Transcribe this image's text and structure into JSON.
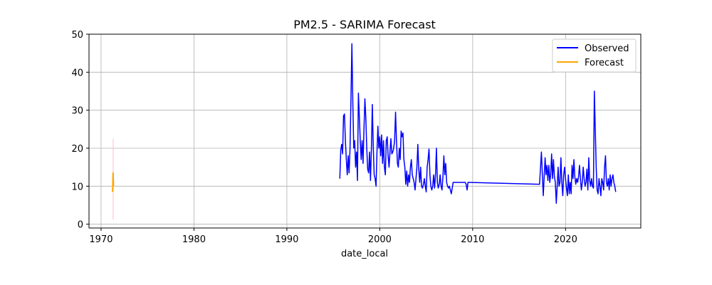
{
  "chart_data": {
    "type": "line",
    "title": "PM2.5 - SARIMA Forecast",
    "xlabel": "date_local",
    "ylabel": "",
    "xlim": [
      1968.7,
      2028.1
    ],
    "ylim": [
      -1,
      50
    ],
    "xticks": [
      1970,
      1980,
      1990,
      2000,
      2010,
      2020
    ],
    "yticks": [
      0,
      10,
      20,
      30,
      40,
      50
    ],
    "grid": true,
    "legend_position": "top-right",
    "series": [
      {
        "name": "Observed",
        "color": "#0000ff",
        "points": [
          [
            1995.7,
            12.0
          ],
          [
            1995.8,
            19.5
          ],
          [
            1995.9,
            21.0
          ],
          [
            1996.0,
            18.5
          ],
          [
            1996.1,
            28.5
          ],
          [
            1996.2,
            29.0
          ],
          [
            1996.3,
            22.0
          ],
          [
            1996.4,
            17.0
          ],
          [
            1996.5,
            13.0
          ],
          [
            1996.6,
            18.0
          ],
          [
            1996.7,
            13.5
          ],
          [
            1996.8,
            20.0
          ],
          [
            1996.9,
            33.0
          ],
          [
            1997.0,
            47.5
          ],
          [
            1997.1,
            32.0
          ],
          [
            1997.2,
            20.0
          ],
          [
            1997.3,
            22.0
          ],
          [
            1997.4,
            15.0
          ],
          [
            1997.5,
            19.0
          ],
          [
            1997.6,
            11.5
          ],
          [
            1997.7,
            34.5
          ],
          [
            1997.8,
            28.5
          ],
          [
            1997.9,
            22.0
          ],
          [
            1998.0,
            17.0
          ],
          [
            1998.1,
            22.0
          ],
          [
            1998.2,
            16.0
          ],
          [
            1998.3,
            25.0
          ],
          [
            1998.4,
            33.0
          ],
          [
            1998.5,
            28.0
          ],
          [
            1998.6,
            20.0
          ],
          [
            1998.7,
            14.5
          ],
          [
            1998.8,
            13.5
          ],
          [
            1998.9,
            19.0
          ],
          [
            1999.0,
            11.5
          ],
          [
            1999.1,
            20.0
          ],
          [
            1999.2,
            31.5
          ],
          [
            1999.3,
            20.5
          ],
          [
            1999.4,
            13.0
          ],
          [
            1999.5,
            12.0
          ],
          [
            1999.6,
            10.0
          ],
          [
            1999.7,
            19.0
          ],
          [
            1999.8,
            25.8
          ],
          [
            1999.9,
            20.0
          ],
          [
            2000.0,
            23.0
          ],
          [
            2000.1,
            18.0
          ],
          [
            2000.2,
            23.5
          ],
          [
            2000.3,
            16.0
          ],
          [
            2000.4,
            22.0
          ],
          [
            2000.5,
            15.0
          ],
          [
            2000.6,
            13.0
          ],
          [
            2000.7,
            22.0
          ],
          [
            2000.8,
            23.0
          ],
          [
            2000.9,
            18.0
          ],
          [
            2001.0,
            15.0
          ],
          [
            2001.1,
            19.0
          ],
          [
            2001.2,
            22.5
          ],
          [
            2001.3,
            18.5
          ],
          [
            2001.4,
            19.0
          ],
          [
            2001.5,
            20.0
          ],
          [
            2001.6,
            22.0
          ],
          [
            2001.7,
            29.5
          ],
          [
            2001.8,
            22.0
          ],
          [
            2001.9,
            16.0
          ],
          [
            2002.0,
            15.0
          ],
          [
            2002.1,
            20.0
          ],
          [
            2002.2,
            17.0
          ],
          [
            2002.3,
            24.5
          ],
          [
            2002.4,
            23.0
          ],
          [
            2002.5,
            24.0
          ],
          [
            2002.6,
            17.0
          ],
          [
            2002.7,
            15.0
          ],
          [
            2002.8,
            10.5
          ],
          [
            2002.9,
            14.0
          ],
          [
            2003.0,
            10.0
          ],
          [
            2003.1,
            13.0
          ],
          [
            2003.2,
            11.0
          ],
          [
            2003.3,
            15.0
          ],
          [
            2003.4,
            17.0
          ],
          [
            2003.5,
            13.0
          ],
          [
            2003.6,
            12.0
          ],
          [
            2003.7,
            11.0
          ],
          [
            2003.8,
            9.0
          ],
          [
            2003.9,
            12.0
          ],
          [
            2004.0,
            15.0
          ],
          [
            2004.1,
            21.0
          ],
          [
            2004.2,
            14.5
          ],
          [
            2004.3,
            11.0
          ],
          [
            2004.4,
            15.0
          ],
          [
            2004.5,
            10.0
          ],
          [
            2004.6,
            9.5
          ],
          [
            2004.7,
            10.5
          ],
          [
            2004.8,
            12.0
          ],
          [
            2004.9,
            10.0
          ],
          [
            2005.0,
            8.5
          ],
          [
            2005.1,
            15.0
          ],
          [
            2005.2,
            17.0
          ],
          [
            2005.3,
            19.8
          ],
          [
            2005.4,
            13.0
          ],
          [
            2005.5,
            10.0
          ],
          [
            2005.6,
            9.0
          ],
          [
            2005.7,
            10.0
          ],
          [
            2005.8,
            13.0
          ],
          [
            2005.9,
            9.5
          ],
          [
            2006.0,
            13.0
          ],
          [
            2006.1,
            20.0
          ],
          [
            2006.2,
            11.0
          ],
          [
            2006.3,
            9.5
          ],
          [
            2006.4,
            10.5
          ],
          [
            2006.5,
            13.0
          ],
          [
            2006.6,
            10.0
          ],
          [
            2006.7,
            9.0
          ],
          [
            2006.8,
            12.5
          ],
          [
            2006.9,
            18.0
          ],
          [
            2007.0,
            13.0
          ],
          [
            2007.1,
            16.0
          ],
          [
            2007.2,
            11.0
          ],
          [
            2007.3,
            10.0
          ],
          [
            2007.4,
            9.5
          ],
          [
            2007.5,
            10.0
          ],
          [
            2007.6,
            9.0
          ],
          [
            2007.7,
            8.0
          ],
          [
            2007.8,
            9.5
          ],
          [
            2007.9,
            11.0
          ],
          [
            2008.0,
            11.0
          ],
          [
            2008.1,
            11.0
          ],
          [
            2008.2,
            11.0
          ],
          [
            2008.3,
            11.0
          ],
          [
            2008.4,
            11.0
          ],
          [
            2008.5,
            11.0
          ],
          [
            2008.6,
            11.0
          ],
          [
            2008.7,
            11.0
          ],
          [
            2008.8,
            11.0
          ],
          [
            2008.9,
            11.0
          ],
          [
            2009.0,
            11.0
          ],
          [
            2009.1,
            11.0
          ],
          [
            2009.2,
            11.0
          ],
          [
            2009.3,
            10.5
          ],
          [
            2009.4,
            9.0
          ],
          [
            2009.5,
            11.0
          ],
          [
            2009.6,
            11.0
          ],
          [
            2017.2,
            10.5
          ],
          [
            2017.4,
            19.0
          ],
          [
            2017.6,
            7.5
          ],
          [
            2017.8,
            17.5
          ],
          [
            2017.9,
            13.0
          ],
          [
            2018.0,
            15.5
          ],
          [
            2018.1,
            11.5
          ],
          [
            2018.2,
            15.5
          ],
          [
            2018.3,
            11.0
          ],
          [
            2018.4,
            13.0
          ],
          [
            2018.5,
            18.5
          ],
          [
            2018.6,
            12.0
          ],
          [
            2018.7,
            17.0
          ],
          [
            2018.8,
            12.5
          ],
          [
            2018.9,
            11.0
          ],
          [
            2019.0,
            5.5
          ],
          [
            2019.1,
            10.0
          ],
          [
            2019.2,
            15.0
          ],
          [
            2019.3,
            10.0
          ],
          [
            2019.4,
            11.0
          ],
          [
            2019.5,
            17.5
          ],
          [
            2019.6,
            11.0
          ],
          [
            2019.7,
            7.5
          ],
          [
            2019.8,
            13.0
          ],
          [
            2019.9,
            15.0
          ],
          [
            2020.0,
            12.0
          ],
          [
            2020.1,
            9.5
          ],
          [
            2020.2,
            7.5
          ],
          [
            2020.3,
            13.0
          ],
          [
            2020.4,
            8.0
          ],
          [
            2020.5,
            11.0
          ],
          [
            2020.6,
            8.0
          ],
          [
            2020.7,
            15.5
          ],
          [
            2020.8,
            12.0
          ],
          [
            2020.9,
            17.0
          ],
          [
            2021.0,
            12.5
          ],
          [
            2021.1,
            10.5
          ],
          [
            2021.2,
            12.0
          ],
          [
            2021.3,
            11.0
          ],
          [
            2021.4,
            12.5
          ],
          [
            2021.5,
            15.5
          ],
          [
            2021.6,
            12.0
          ],
          [
            2021.7,
            9.0
          ],
          [
            2021.8,
            11.0
          ],
          [
            2021.9,
            15.0
          ],
          [
            2022.0,
            12.0
          ],
          [
            2022.1,
            10.0
          ],
          [
            2022.2,
            11.0
          ],
          [
            2022.3,
            14.5
          ],
          [
            2022.4,
            9.0
          ],
          [
            2022.5,
            17.5
          ],
          [
            2022.6,
            11.5
          ],
          [
            2022.7,
            10.0
          ],
          [
            2022.8,
            12.0
          ],
          [
            2022.9,
            10.0
          ],
          [
            2023.0,
            9.5
          ],
          [
            2023.1,
            35.0
          ],
          [
            2023.2,
            25.0
          ],
          [
            2023.3,
            15.0
          ],
          [
            2023.4,
            9.0
          ],
          [
            2023.5,
            8.0
          ],
          [
            2023.6,
            12.0
          ],
          [
            2023.7,
            10.0
          ],
          [
            2023.8,
            7.5
          ],
          [
            2023.9,
            12.0
          ],
          [
            2024.0,
            11.0
          ],
          [
            2024.1,
            9.0
          ],
          [
            2024.2,
            15.0
          ],
          [
            2024.3,
            18.0
          ],
          [
            2024.4,
            11.0
          ],
          [
            2024.5,
            10.0
          ],
          [
            2024.6,
            12.0
          ],
          [
            2024.7,
            9.0
          ],
          [
            2024.8,
            13.0
          ],
          [
            2024.9,
            10.0
          ],
          [
            2025.0,
            12.0
          ],
          [
            2025.1,
            13.0
          ],
          [
            2025.2,
            11.0
          ],
          [
            2025.3,
            10.0
          ],
          [
            2025.4,
            8.5
          ]
        ]
      },
      {
        "name": "Forecast",
        "color": "#ffa500",
        "points": [
          [
            1971.23,
            8.5
          ],
          [
            1971.26,
            10.0
          ],
          [
            1971.29,
            13.5
          ],
          [
            1971.31,
            12.0
          ],
          [
            1971.34,
            10.0
          ]
        ]
      }
    ],
    "confidence_interval": {
      "color": "#ffc0cb",
      "x": 1971.3,
      "lower": 1.2,
      "upper": 22.5
    }
  }
}
